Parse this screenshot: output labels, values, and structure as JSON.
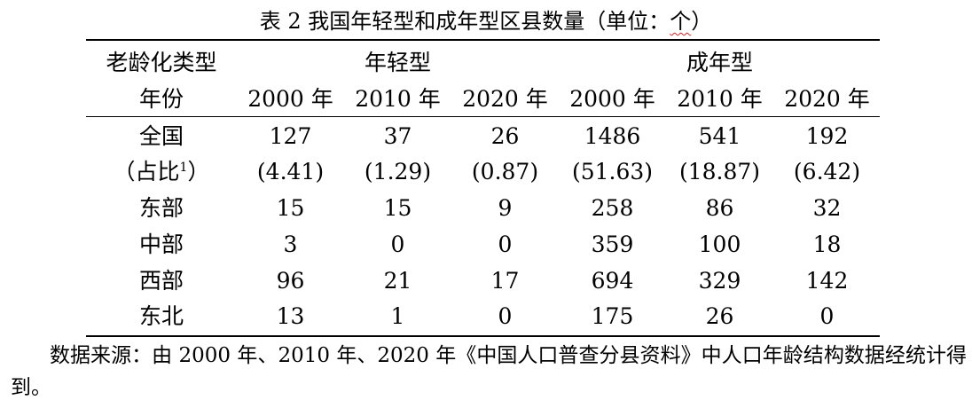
{
  "table": {
    "caption_main": "表 2 我国年轻型和成年型区县数量（单位：",
    "caption_unit": "个",
    "caption_close": "）",
    "header": {
      "row_label_1": "老龄化类型",
      "row_label_2": "年份",
      "group_young": "年轻型",
      "group_adult": "成年型",
      "years": [
        "2000 年",
        "2010 年",
        "2020 年",
        "2000 年",
        "2010 年",
        "2020 年"
      ]
    },
    "rows": [
      {
        "label": "全国",
        "values": [
          "127",
          "37",
          "26",
          "1486",
          "541",
          "192"
        ]
      },
      {
        "label": "（占比",
        "sup": "1",
        "label_close": "）",
        "values": [
          "(4.41)",
          "(1.29)",
          "(0.87)",
          "(51.63)",
          "(18.87)",
          "(6.42)"
        ]
      },
      {
        "label": "东部",
        "values": [
          "15",
          "15",
          "9",
          "258",
          "86",
          "32"
        ]
      },
      {
        "label": "中部",
        "values": [
          "3",
          "0",
          "0",
          "359",
          "100",
          "18"
        ]
      },
      {
        "label": "西部",
        "values": [
          "96",
          "21",
          "17",
          "694",
          "329",
          "142"
        ]
      },
      {
        "label": "东北",
        "values": [
          "13",
          "1",
          "0",
          "175",
          "26",
          "0"
        ]
      }
    ],
    "source": "数据来源：由 2000 年、2010 年、2020 年《中国人口普查分县资料》中人口年龄结构数据经统计得到。"
  }
}
